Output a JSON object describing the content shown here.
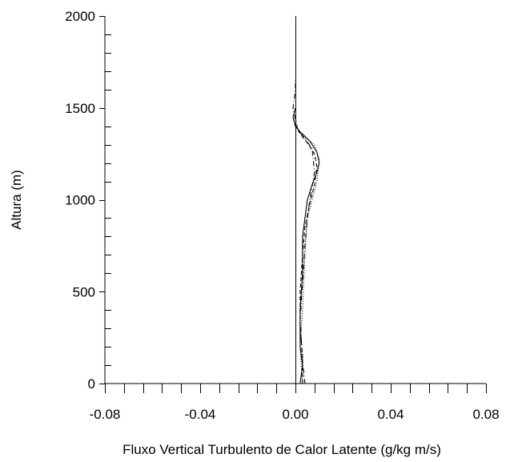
{
  "chart_data": {
    "type": "line",
    "xlabel": "Fluxo Vertical Turbulento de Calor Latente (g/kg m/s)",
    "ylabel": "Altura (m)",
    "xlim": [
      -0.08,
      0.08
    ],
    "ylim": [
      0,
      2000
    ],
    "x_ticks": [
      "-0.08",
      "-0.04",
      "0.00",
      "0.04",
      "0.08"
    ],
    "y_ticks": [
      "0",
      "500",
      "1000",
      "1500",
      "2000"
    ],
    "x_minor_step": 0.008,
    "y_minor_step": 100,
    "grid": false,
    "legend": "none",
    "zero_line": true,
    "series": [
      {
        "style": "solid",
        "x": [
          0.002,
          0.003,
          0.002,
          0.002,
          0.003,
          0.003,
          0.004,
          0.005,
          0.007,
          0.009,
          0.01,
          0.009,
          0.006,
          0.002,
          0.0,
          -0.001,
          0.0
        ],
        "y": [
          0,
          100,
          200,
          400,
          600,
          800,
          900,
          1000,
          1080,
          1150,
          1200,
          1260,
          1320,
          1370,
          1400,
          1450,
          1500
        ]
      },
      {
        "style": "dashed",
        "x": [
          0.003,
          0.003,
          0.002,
          0.002,
          0.003,
          0.004,
          0.006,
          0.008,
          0.009,
          0.008,
          0.005,
          0.002,
          0.0,
          -0.001
        ],
        "y": [
          0,
          150,
          300,
          500,
          700,
          850,
          980,
          1080,
          1180,
          1250,
          1310,
          1360,
          1400,
          1450
        ]
      },
      {
        "style": "dashdot",
        "x": [
          0.004,
          0.003,
          0.002,
          0.003,
          0.004,
          0.005,
          0.006,
          0.008,
          0.007,
          0.004,
          0.001,
          -0.001,
          0.0,
          0.0
        ],
        "y": [
          0,
          120,
          350,
          550,
          750,
          900,
          1000,
          1150,
          1280,
          1330,
          1380,
          1500,
          1600,
          1650
        ]
      },
      {
        "style": "dotted",
        "x": [
          0.003,
          0.002,
          0.003,
          0.004,
          0.005,
          0.007,
          0.009,
          0.01,
          0.008,
          0.003,
          0.0
        ],
        "y": [
          0,
          200,
          400,
          700,
          900,
          1000,
          1100,
          1220,
          1300,
          1350,
          1400
        ]
      }
    ]
  }
}
